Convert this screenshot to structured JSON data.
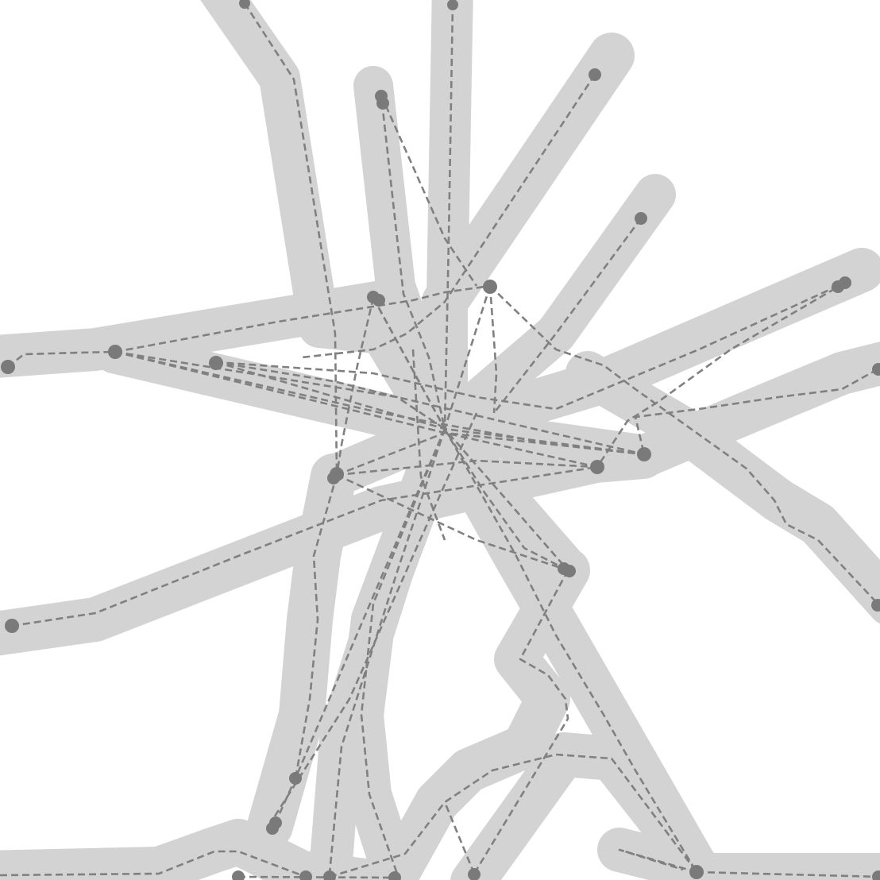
{
  "map": {
    "colors": {
      "background": "#ffffff",
      "corridor": "#d3d3d3",
      "route": "#808080",
      "node": "#7a7a7a"
    }
  }
}
